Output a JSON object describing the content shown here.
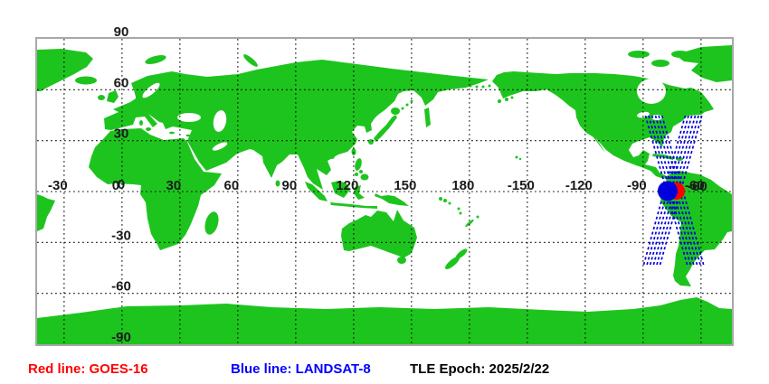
{
  "colors": {
    "land": "#1ec41e",
    "ocean": "#ffffff",
    "grid": "#000000",
    "border": "#a8a8a8",
    "track_blue": "#0000dd",
    "marker_blue": "#0000dd",
    "marker_red": "#ff0000",
    "axis_label": "#1a1a1a",
    "legend_red": "#ff0000",
    "legend_blue": "#0000ff",
    "legend_black": "#000000"
  },
  "map": {
    "lat_ticks": [
      90,
      60,
      30,
      0,
      -30,
      -60,
      -90
    ],
    "lon_ticks": [
      -30,
      0,
      30,
      60,
      90,
      120,
      150,
      180,
      -150,
      -120,
      -90,
      -60
    ]
  },
  "legend": {
    "red_label": "Red line: GOES-16",
    "blue_label": "Blue line: LANDSAT-8",
    "epoch_label": "TLE Epoch: 2025/2/22"
  },
  "chart_data": {
    "type": "map",
    "description": "Geostationary and polar orbiter subpoint ground-track plot",
    "projection": "equirectangular",
    "lon_left_edge": -44,
    "lat_range": [
      -90,
      90
    ],
    "grid_interval_deg": 30,
    "tle_epoch": "2025/2/22",
    "satellites": [
      {
        "name": "GOES-16",
        "color": "red",
        "marker": {
          "lon": -72.8,
          "lat": 0.3,
          "r": 9.5
        }
      },
      {
        "name": "LANDSAT-8",
        "color": "blue",
        "marker": {
          "lon": -77.3,
          "lat": 0.3,
          "r": 11
        }
      }
    ],
    "tracks": [
      {
        "satellite": "LANDSAT-8",
        "dir": "descending",
        "top": {
          "lon": -87.1,
          "lat": 44.7
        },
        "bottom": {
          "lon": -65.5,
          "lat": -43.1
        }
      },
      {
        "satellite": "LANDSAT-8",
        "dir": "descending",
        "top": {
          "lon": -81.9,
          "lat": 44.7
        },
        "bottom": {
          "lon": -60.4,
          "lat": -43.1
        }
      },
      {
        "satellite": "LANDSAT-8",
        "dir": "ascending",
        "top": {
          "lon": -66.5,
          "lat": 44.7
        },
        "bottom": {
          "lon": -88.0,
          "lat": -43.1
        }
      },
      {
        "satellite": "LANDSAT-8",
        "dir": "ascending",
        "top": {
          "lon": -61.3,
          "lat": 44.7
        },
        "bottom": {
          "lon": -82.9,
          "lat": -43.1
        }
      }
    ],
    "lines_per_track_band": 3
  }
}
